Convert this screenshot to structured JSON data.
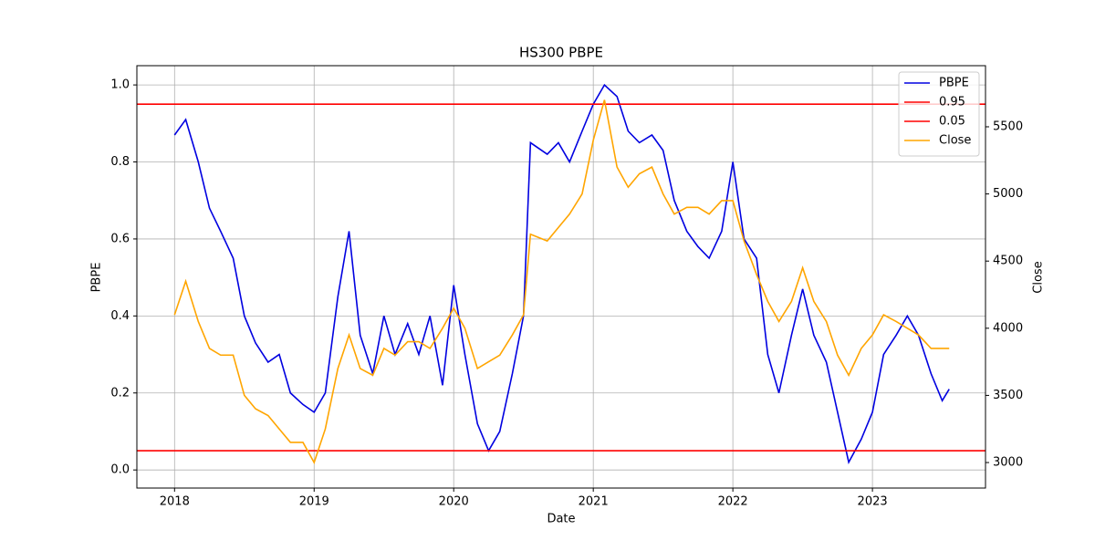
{
  "chart_data": {
    "type": "line",
    "title": "HS300 PBPE",
    "x_label": "Date",
    "y_label": "PBPE",
    "y2_label": "Close",
    "x": [
      2018.0,
      2018.08,
      2018.17,
      2018.25,
      2018.33,
      2018.42,
      2018.5,
      2018.58,
      2018.67,
      2018.75,
      2018.83,
      2018.92,
      2019.0,
      2019.08,
      2019.17,
      2019.25,
      2019.33,
      2019.42,
      2019.5,
      2019.58,
      2019.67,
      2019.75,
      2019.83,
      2019.92,
      2020.0,
      2020.08,
      2020.17,
      2020.25,
      2020.33,
      2020.42,
      2020.5,
      2020.55,
      2020.67,
      2020.75,
      2020.83,
      2020.92,
      2021.0,
      2021.08,
      2021.17,
      2021.25,
      2021.33,
      2021.42,
      2021.5,
      2021.58,
      2021.67,
      2021.75,
      2021.83,
      2021.92,
      2022.0,
      2022.08,
      2022.17,
      2022.25,
      2022.33,
      2022.42,
      2022.5,
      2022.58,
      2022.67,
      2022.75,
      2022.83,
      2022.92,
      2023.0,
      2023.08,
      2023.17,
      2023.25,
      2023.33,
      2023.42,
      2023.5,
      2023.55
    ],
    "series": [
      {
        "name": "PBPE",
        "color": "#0000e0",
        "axis": "y",
        "values": [
          0.87,
          0.91,
          0.8,
          0.68,
          0.62,
          0.55,
          0.4,
          0.33,
          0.28,
          0.3,
          0.2,
          0.17,
          0.15,
          0.2,
          0.45,
          0.62,
          0.35,
          0.25,
          0.4,
          0.3,
          0.38,
          0.3,
          0.4,
          0.22,
          0.48,
          0.3,
          0.12,
          0.05,
          0.1,
          0.25,
          0.4,
          0.85,
          0.82,
          0.85,
          0.8,
          0.88,
          0.95,
          1.0,
          0.97,
          0.88,
          0.85,
          0.87,
          0.83,
          0.7,
          0.62,
          0.58,
          0.55,
          0.62,
          0.8,
          0.6,
          0.55,
          0.3,
          0.2,
          0.35,
          0.47,
          0.35,
          0.28,
          0.15,
          0.02,
          0.08,
          0.15,
          0.3,
          0.35,
          0.4,
          0.35,
          0.25,
          0.18,
          0.21
        ]
      },
      {
        "name": "Close",
        "color": "#ffa500",
        "axis": "y2",
        "values": [
          4100,
          4350,
          4050,
          3850,
          3800,
          3800,
          3500,
          3400,
          3350,
          3250,
          3150,
          3150,
          3000,
          3250,
          3700,
          3950,
          3700,
          3650,
          3850,
          3800,
          3900,
          3900,
          3850,
          4000,
          4150,
          4000,
          3700,
          3750,
          3800,
          3950,
          4100,
          4700,
          4650,
          4750,
          4850,
          5000,
          5400,
          5700,
          5200,
          5050,
          5150,
          5200,
          5000,
          4850,
          4900,
          4900,
          4850,
          4950,
          4950,
          4650,
          4400,
          4200,
          4050,
          4200,
          4450,
          4200,
          4050,
          3800,
          3650,
          3850,
          3950,
          4100,
          4050,
          4000,
          3950,
          3850,
          3850,
          3850
        ]
      }
    ],
    "hlines": [
      {
        "name": "0.95",
        "value": 0.95,
        "color": "#ff0000"
      },
      {
        "name": "0.05",
        "value": 0.05,
        "color": "#ff0000"
      }
    ],
    "xlim": [
      2017.73,
      2023.81
    ],
    "xticks": [
      2018,
      2019,
      2020,
      2021,
      2022,
      2023
    ],
    "ylim": [
      -0.047,
      1.05
    ],
    "yticks": [
      {
        "value": 0,
        "label": "0.0"
      },
      0.2,
      0.4,
      0.6,
      0.8,
      {
        "value": 1,
        "label": "1.0"
      }
    ],
    "y2lim": [
      2810,
      5955
    ],
    "y2ticks": [
      3000,
      3500,
      4000,
      4500,
      5000,
      5500
    ],
    "grid": true,
    "legend": "upper right"
  }
}
